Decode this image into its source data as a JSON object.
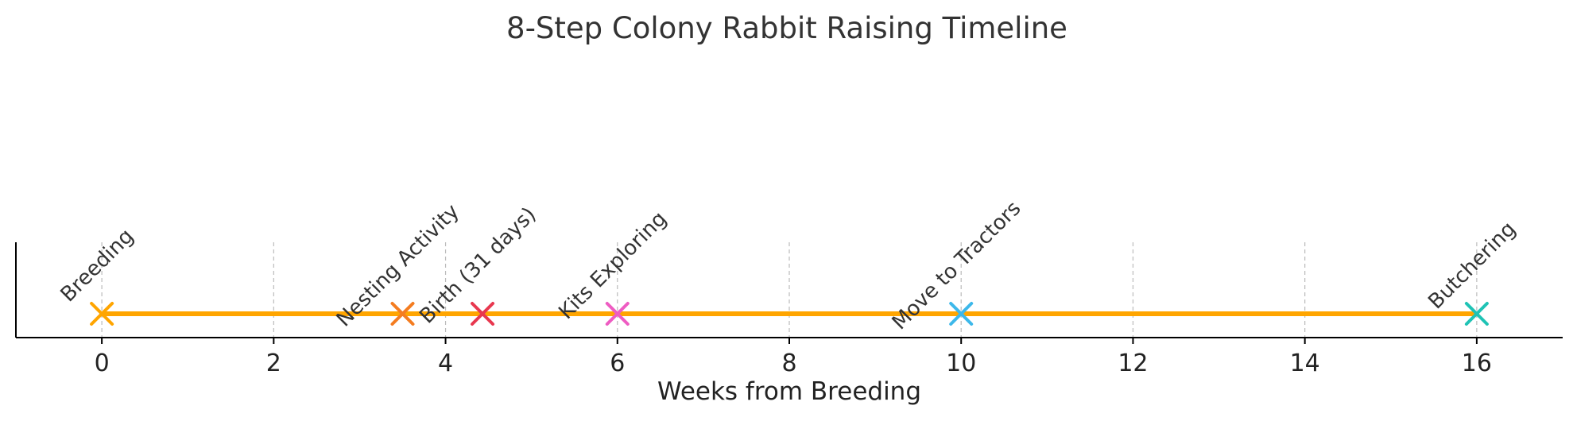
{
  "chart_data": {
    "type": "scatter",
    "title": "8-Step Colony Rabbit Raising Timeline",
    "xlabel": "Weeks from Breeding",
    "ylabel": "",
    "xlim": [
      -1,
      17
    ],
    "xticks": [
      0,
      2,
      4,
      6,
      8,
      10,
      12,
      14,
      16
    ],
    "grid": "vertical dashed",
    "line_color": "#FFA500",
    "events": [
      {
        "label": "Breeding",
        "x": 0,
        "color": "#FFA500"
      },
      {
        "label": "Nesting Activity",
        "x": 3.5,
        "color": "#F47C20"
      },
      {
        "label": "Birth (31 days)",
        "x": 4.43,
        "color": "#E8384F"
      },
      {
        "label": "Kits Exploring",
        "x": 6,
        "color": "#EE5CC2"
      },
      {
        "label": "Move to Tractors",
        "x": 10,
        "color": "#3DB8EA"
      },
      {
        "label": "Butchering",
        "x": 16,
        "color": "#1FC3B5"
      }
    ]
  }
}
